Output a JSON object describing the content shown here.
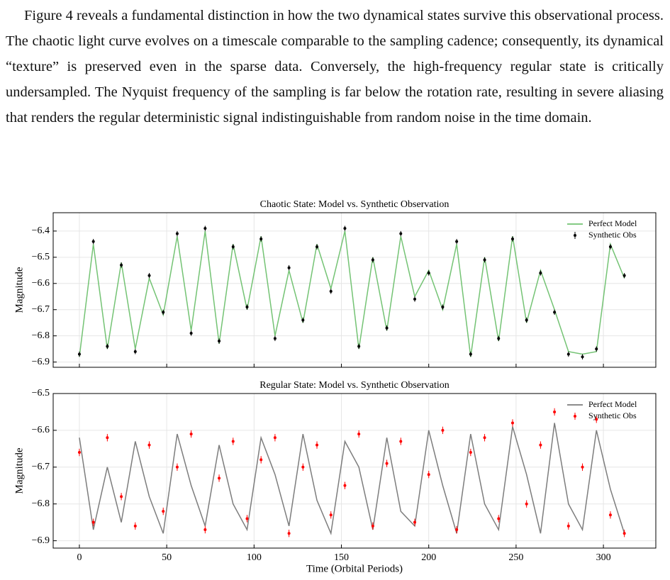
{
  "text": {
    "paragraph": "Figure 4 reveals a fundamental distinction in how the two dynamical states survive this observational process. The chaotic light curve evolves on a timescale comparable to the sampling cadence; consequently, its dynamical “texture” is preserved even in the sparse data. Conversely, the high-frequency regular state is critically undersampled. The Nyquist frequency of the sampling is far below the rotation rate, resulting in severe aliasing that renders the regular deterministic signal indistinguishable from random noise in the time domain."
  },
  "chart_data": [
    {
      "type": "line",
      "title": "Chaotic State: Model vs. Synthetic Observation",
      "ylabel": "Magnitude",
      "x": [
        0,
        8,
        16,
        24,
        32,
        40,
        48,
        56,
        64,
        72,
        80,
        88,
        96,
        104,
        112,
        120,
        128,
        136,
        144,
        152,
        160,
        168,
        176,
        184,
        192,
        200,
        208,
        216,
        224,
        232,
        240,
        248,
        256,
        264,
        272,
        280,
        288,
        296,
        304,
        312
      ],
      "series": [
        {
          "name": "Perfect Model",
          "kind": "line",
          "color": "#5cb85c",
          "values": [
            -6.88,
            -6.45,
            -6.85,
            -6.52,
            -6.85,
            -6.58,
            -6.72,
            -6.42,
            -6.78,
            -6.4,
            -6.83,
            -6.45,
            -6.7,
            -6.42,
            -6.8,
            -6.55,
            -6.75,
            -6.45,
            -6.62,
            -6.4,
            -6.85,
            -6.5,
            -6.78,
            -6.42,
            -6.65,
            -6.55,
            -6.7,
            -6.45,
            -6.88,
            -6.5,
            -6.82,
            -6.42,
            -6.75,
            -6.55,
            -6.7,
            -6.86,
            -6.87,
            -6.86,
            -6.45,
            -6.58
          ]
        },
        {
          "name": "Synthetic Obs",
          "kind": "errorbar",
          "color": "#000000",
          "error": 0.01,
          "values": [
            -6.87,
            -6.44,
            -6.84,
            -6.53,
            -6.86,
            -6.57,
            -6.71,
            -6.41,
            -6.79,
            -6.39,
            -6.82,
            -6.46,
            -6.69,
            -6.43,
            -6.81,
            -6.54,
            -6.74,
            -6.46,
            -6.63,
            -6.39,
            -6.84,
            -6.51,
            -6.77,
            -6.41,
            -6.66,
            -6.56,
            -6.69,
            -6.44,
            -6.87,
            -6.51,
            -6.81,
            -6.43,
            -6.74,
            -6.56,
            -6.71,
            -6.87,
            -6.88,
            -6.85,
            -6.46,
            -6.57
          ]
        }
      ],
      "xlim": [
        -15,
        330
      ],
      "xticks": [
        0,
        50,
        100,
        150,
        200,
        250,
        300
      ],
      "ylim": [
        -6.92,
        -6.33
      ],
      "yticks": [
        {
          "value": -6.9,
          "label": "−6.9"
        },
        {
          "value": -6.8,
          "label": "−6.8"
        },
        {
          "value": -6.7,
          "label": "−6.7"
        },
        {
          "value": -6.6,
          "label": "−6.6"
        },
        {
          "value": -6.5,
          "label": "−6.5"
        },
        {
          "value": -6.4,
          "label": "−6.4"
        }
      ],
      "grid": true,
      "legend": "upper right"
    },
    {
      "type": "line",
      "title": "Regular State: Model vs. Synthetic Observation",
      "ylabel": "Magnitude",
      "xlabel": "Time (Orbital Periods)",
      "x": [
        0,
        8,
        16,
        24,
        32,
        40,
        48,
        56,
        64,
        72,
        80,
        88,
        96,
        104,
        112,
        120,
        128,
        136,
        144,
        152,
        160,
        168,
        176,
        184,
        192,
        200,
        208,
        216,
        224,
        232,
        240,
        248,
        256,
        264,
        272,
        280,
        288,
        296,
        304,
        312
      ],
      "series": [
        {
          "name": "Perfect Model",
          "kind": "line",
          "color": "#666666",
          "values": [
            -6.62,
            -6.87,
            -6.7,
            -6.85,
            -6.63,
            -6.78,
            -6.88,
            -6.61,
            -6.75,
            -6.86,
            -6.64,
            -6.8,
            -6.87,
            -6.62,
            -6.72,
            -6.86,
            -6.61,
            -6.79,
            -6.88,
            -6.63,
            -6.7,
            -6.87,
            -6.62,
            -6.82,
            -6.86,
            -6.6,
            -6.75,
            -6.88,
            -6.61,
            -6.8,
            -6.87,
            -6.59,
            -6.72,
            -6.88,
            -6.58,
            -6.8,
            -6.87,
            -6.6,
            -6.76,
            -6.88
          ]
        },
        {
          "name": "Synthetic Obs",
          "kind": "errorbar",
          "color": "#ff0000",
          "error": 0.01,
          "values": [
            -6.66,
            -6.85,
            -6.62,
            -6.78,
            -6.86,
            -6.64,
            -6.82,
            -6.7,
            -6.61,
            -6.87,
            -6.73,
            -6.63,
            -6.84,
            -6.68,
            -6.62,
            -6.88,
            -6.7,
            -6.64,
            -6.83,
            -6.75,
            -6.61,
            -6.86,
            -6.69,
            -6.63,
            -6.85,
            -6.72,
            -6.6,
            -6.87,
            -6.66,
            -6.62,
            -6.84,
            -6.58,
            -6.8,
            -6.64,
            -6.55,
            -6.86,
            -6.7,
            -6.57,
            -6.83,
            -6.88
          ]
        }
      ],
      "xlim": [
        -15,
        330
      ],
      "xticks": [
        0,
        50,
        100,
        150,
        200,
        250,
        300
      ],
      "ylim": [
        -6.92,
        -6.5
      ],
      "yticks": [
        {
          "value": -6.9,
          "label": "−6.9"
        },
        {
          "value": -6.8,
          "label": "−6.8"
        },
        {
          "value": -6.7,
          "label": "−6.7"
        },
        {
          "value": -6.6,
          "label": "−6.6"
        },
        {
          "value": -6.5,
          "label": "−6.5"
        }
      ],
      "grid": true,
      "legend": "upper right"
    }
  ]
}
